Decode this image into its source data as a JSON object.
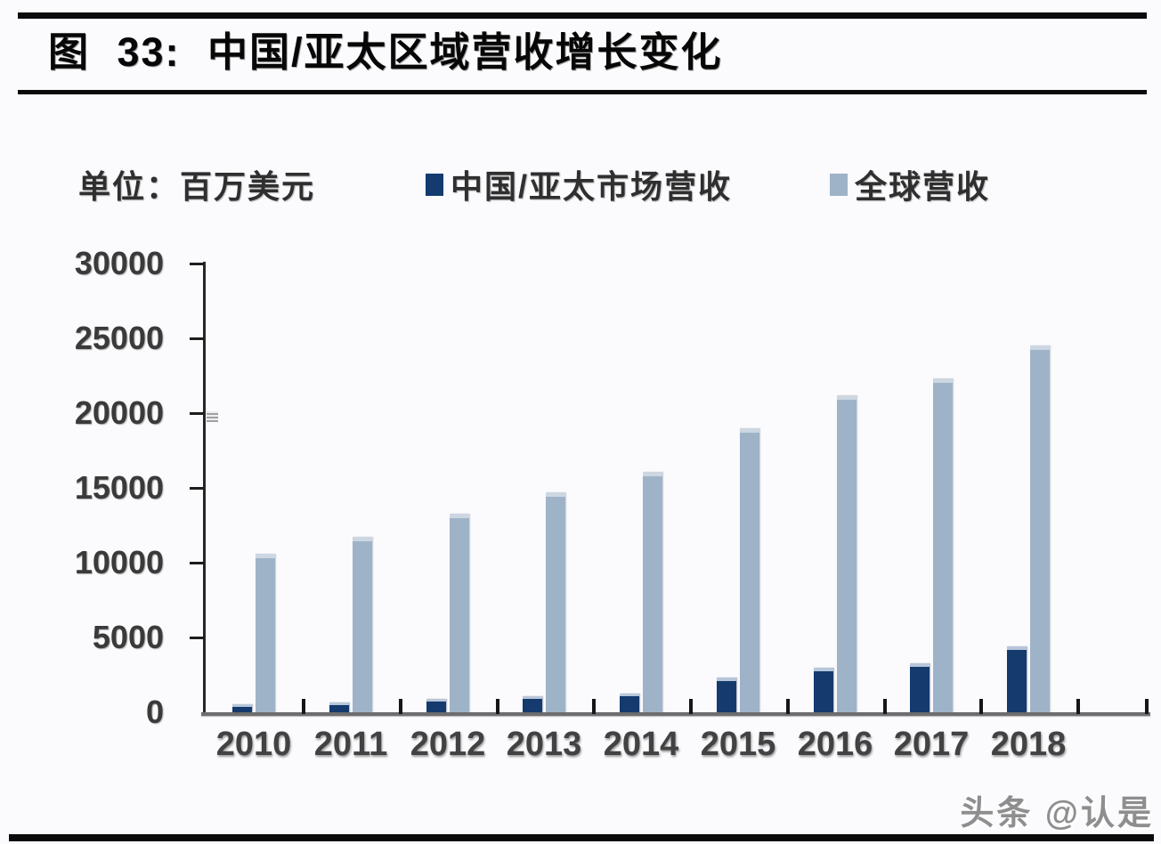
{
  "page": {
    "title": "图 33: 中国/亚太区域营收增长变化",
    "unit_label": "单位：百万美元",
    "watermark": "头条 @认是"
  },
  "chart_data": {
    "type": "bar",
    "title": "中国/亚太区域营收增长变化",
    "unit": "百万美元",
    "categories": [
      "2010",
      "2011",
      "2012",
      "2013",
      "2014",
      "2015",
      "2016",
      "2017",
      "2018"
    ],
    "series": [
      {
        "name": "中国/亚太市场营收",
        "color": "#143a6e",
        "cap_color": "#b7c7da",
        "values": [
          550,
          650,
          880,
          1100,
          1250,
          2300,
          3000,
          3250,
          4400
        ]
      },
      {
        "name": "全球营收",
        "color": "#9fb3c8",
        "cap_color": "#ccd7e2",
        "values": [
          10600,
          11700,
          13300,
          14700,
          16100,
          19000,
          21200,
          22300,
          24500
        ]
      }
    ],
    "ylim": [
      0,
      30000
    ],
    "ytick_interval": 5000,
    "yticks": [
      0,
      5000,
      10000,
      15000,
      20000,
      25000,
      30000
    ],
    "grid": false,
    "legend_position": "top"
  }
}
